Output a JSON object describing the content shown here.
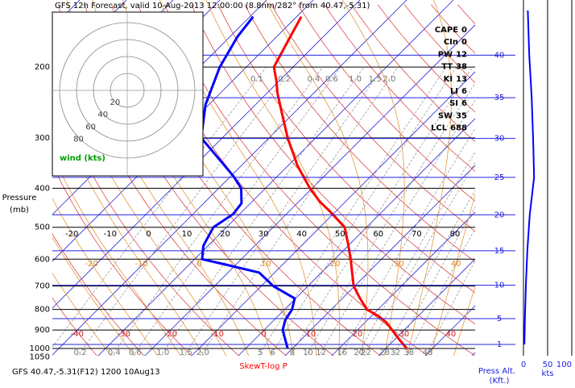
{
  "chart_data": {
    "type": "skewt",
    "title": "GFS 12h Forecast, valid 10-Aug-2013 12:00:00 (8.8nm/282° from 40.47,-5.31)",
    "subtitle": "GFS 40.47,-5.31(F12) 1200 10Aug13",
    "diagram_label": "SkewT-log P",
    "y_label": [
      "Pressure",
      "(mb)"
    ],
    "log_y": true,
    "ylim": [
      1050,
      136
    ],
    "yticks": [
      200,
      300,
      400,
      500,
      600,
      700,
      800,
      900,
      1000,
      1050
    ],
    "isotherm_labels": [
      -40,
      -30,
      -20,
      -10,
      0,
      10,
      20,
      30,
      40
    ],
    "dry_adiabat_labels": [
      -20,
      -10,
      0,
      10,
      20,
      30,
      40,
      50,
      60,
      70,
      80
    ],
    "moist_adiabat_labels": [
      -20,
      -10,
      0,
      10,
      20,
      30,
      40
    ],
    "mixing_ratio_labels_top": [
      0.1,
      0.2,
      0.4,
      0.6,
      {
        "value": 1,
        "label": "1.0"
      },
      1.5,
      {
        "value": 2,
        "label": "2.0"
      }
    ],
    "mixing_ratio_labels_bottom": [
      0.2,
      0.4,
      0.6,
      {
        "value": 1,
        "label": "1.0"
      },
      1.5,
      {
        "value": 2,
        "label": "2.0"
      },
      5,
      6,
      8,
      10,
      12,
      16,
      20,
      22,
      28,
      32,
      38,
      48
    ],
    "series": [
      {
        "color": "#ff0000",
        "pressure": [
          1000,
          946,
          863,
          832,
          800,
          751,
          700,
          639,
          600,
          544,
          500,
          457,
          432,
          400,
          352,
          300,
          260,
          232,
          216,
          200,
          172,
          150
        ],
        "values": [
          34.5,
          30.7,
          24.7,
          21.6,
          17.6,
          13.8,
          9.8,
          6.0,
          3.4,
          -0.9,
          -4.7,
          -11.2,
          -15.5,
          -20.5,
          -27.9,
          -36.0,
          -42.6,
          -47.8,
          -50.7,
          -54.1,
          -56.7,
          -59.0
        ]
      },
      {
        "color": "#0000ff",
        "pressure": [
          1000,
          900,
          850,
          800,
          751,
          700,
          648,
          619,
          600,
          556,
          500,
          463,
          436,
          400,
          373,
          335,
          300,
          248,
          200,
          168,
          150
        ],
        "values": [
          9.0,
          4.0,
          2.4,
          1.6,
          -0.2,
          -7.4,
          -13.3,
          -22.2,
          -28.4,
          -31.0,
          -32.8,
          -31.4,
          -31.9,
          -35.2,
          -39.5,
          -46.9,
          -54.5,
          -60.7,
          -65.7,
          -68.4,
          -69.3
        ]
      }
    ],
    "indices": [
      {
        "label": "CAPE",
        "value": 0
      },
      {
        "label": "CIn",
        "value": 0
      },
      {
        "label": "PW",
        "value": 12
      },
      {
        "label": "TT",
        "value": 38
      },
      {
        "label": "KI",
        "value": 13
      },
      {
        "label": "LI",
        "value": 6
      },
      {
        "label": "SI",
        "value": 6
      },
      {
        "label": "SW",
        "value": 35
      },
      {
        "label": "LCL",
        "value": 688
      }
    ],
    "hodograph": {
      "rings": [
        20,
        40,
        60,
        80
      ],
      "label": "wind (kts)"
    },
    "altitude_axis": {
      "label": [
        "Press Alt.",
        "(Kft.)"
      ],
      "ticks": [
        1,
        5,
        10,
        15,
        20,
        25,
        30,
        35,
        40
      ]
    },
    "speed_axis": {
      "label": "kts",
      "xlim": [
        0,
        100
      ],
      "ticks": [
        0,
        50,
        100
      ]
    },
    "wind_speed": {
      "color": "#0000ff",
      "altitude": [
        1,
        5,
        10,
        15,
        20,
        25,
        30,
        35,
        40,
        45
      ],
      "values": [
        2,
        3,
        5,
        8,
        13,
        22,
        20,
        17,
        12,
        9
      ]
    }
  }
}
